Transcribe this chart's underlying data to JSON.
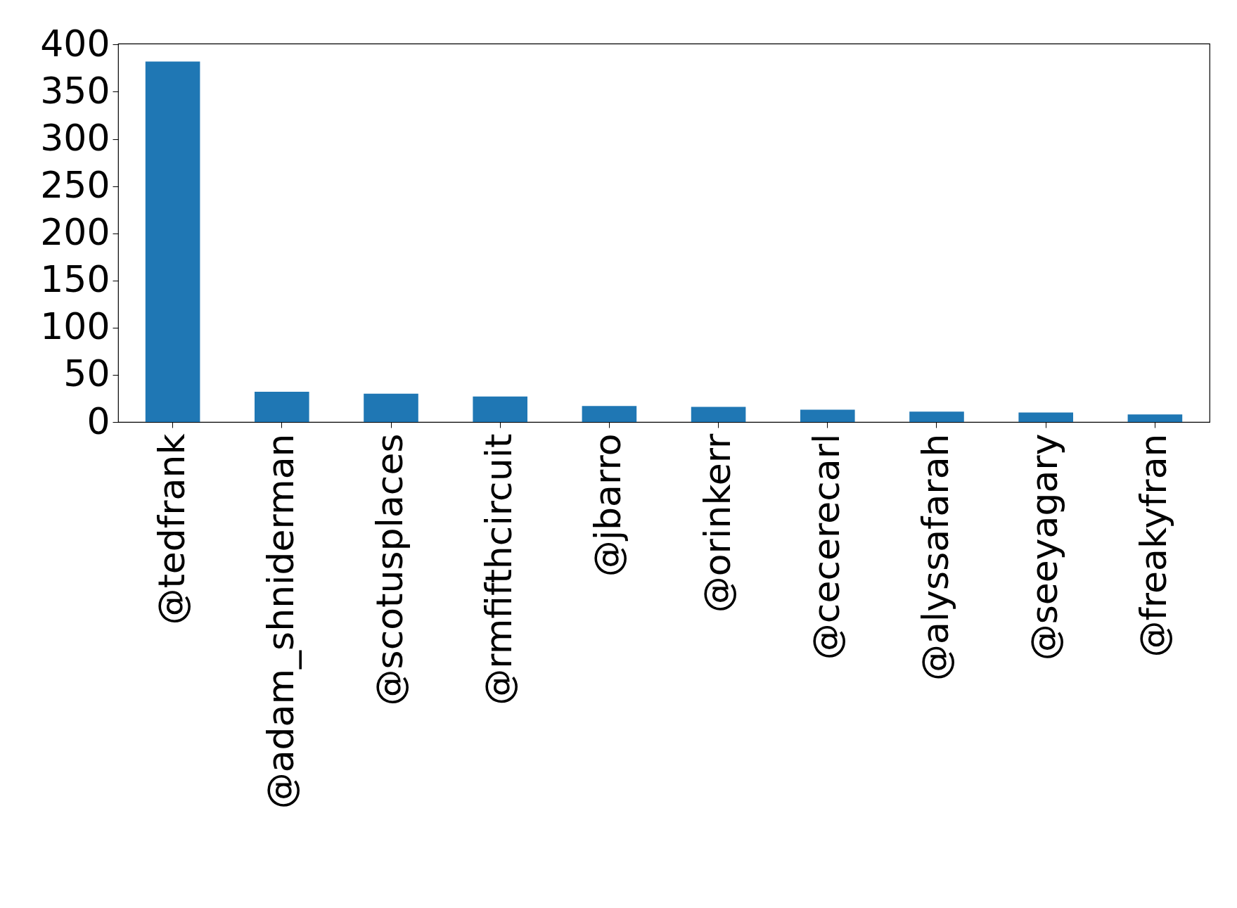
{
  "chart_data": {
    "type": "bar",
    "categories": [
      "@tedfrank",
      "@adam_shniderman",
      "@scotusplaces",
      "@rmfifthcircuit",
      "@jbarro",
      "@orinkerr",
      "@cecerecarl",
      "@alyssafarah",
      "@seeyagary",
      "@freakyfran"
    ],
    "values": [
      382,
      32,
      30,
      27,
      17,
      16,
      13,
      11,
      10,
      8
    ],
    "color": "#1f77b4",
    "ylim": [
      0,
      401
    ],
    "yticks": [
      0,
      50,
      100,
      150,
      200,
      250,
      300,
      350,
      400
    ],
    "grid": false
  }
}
